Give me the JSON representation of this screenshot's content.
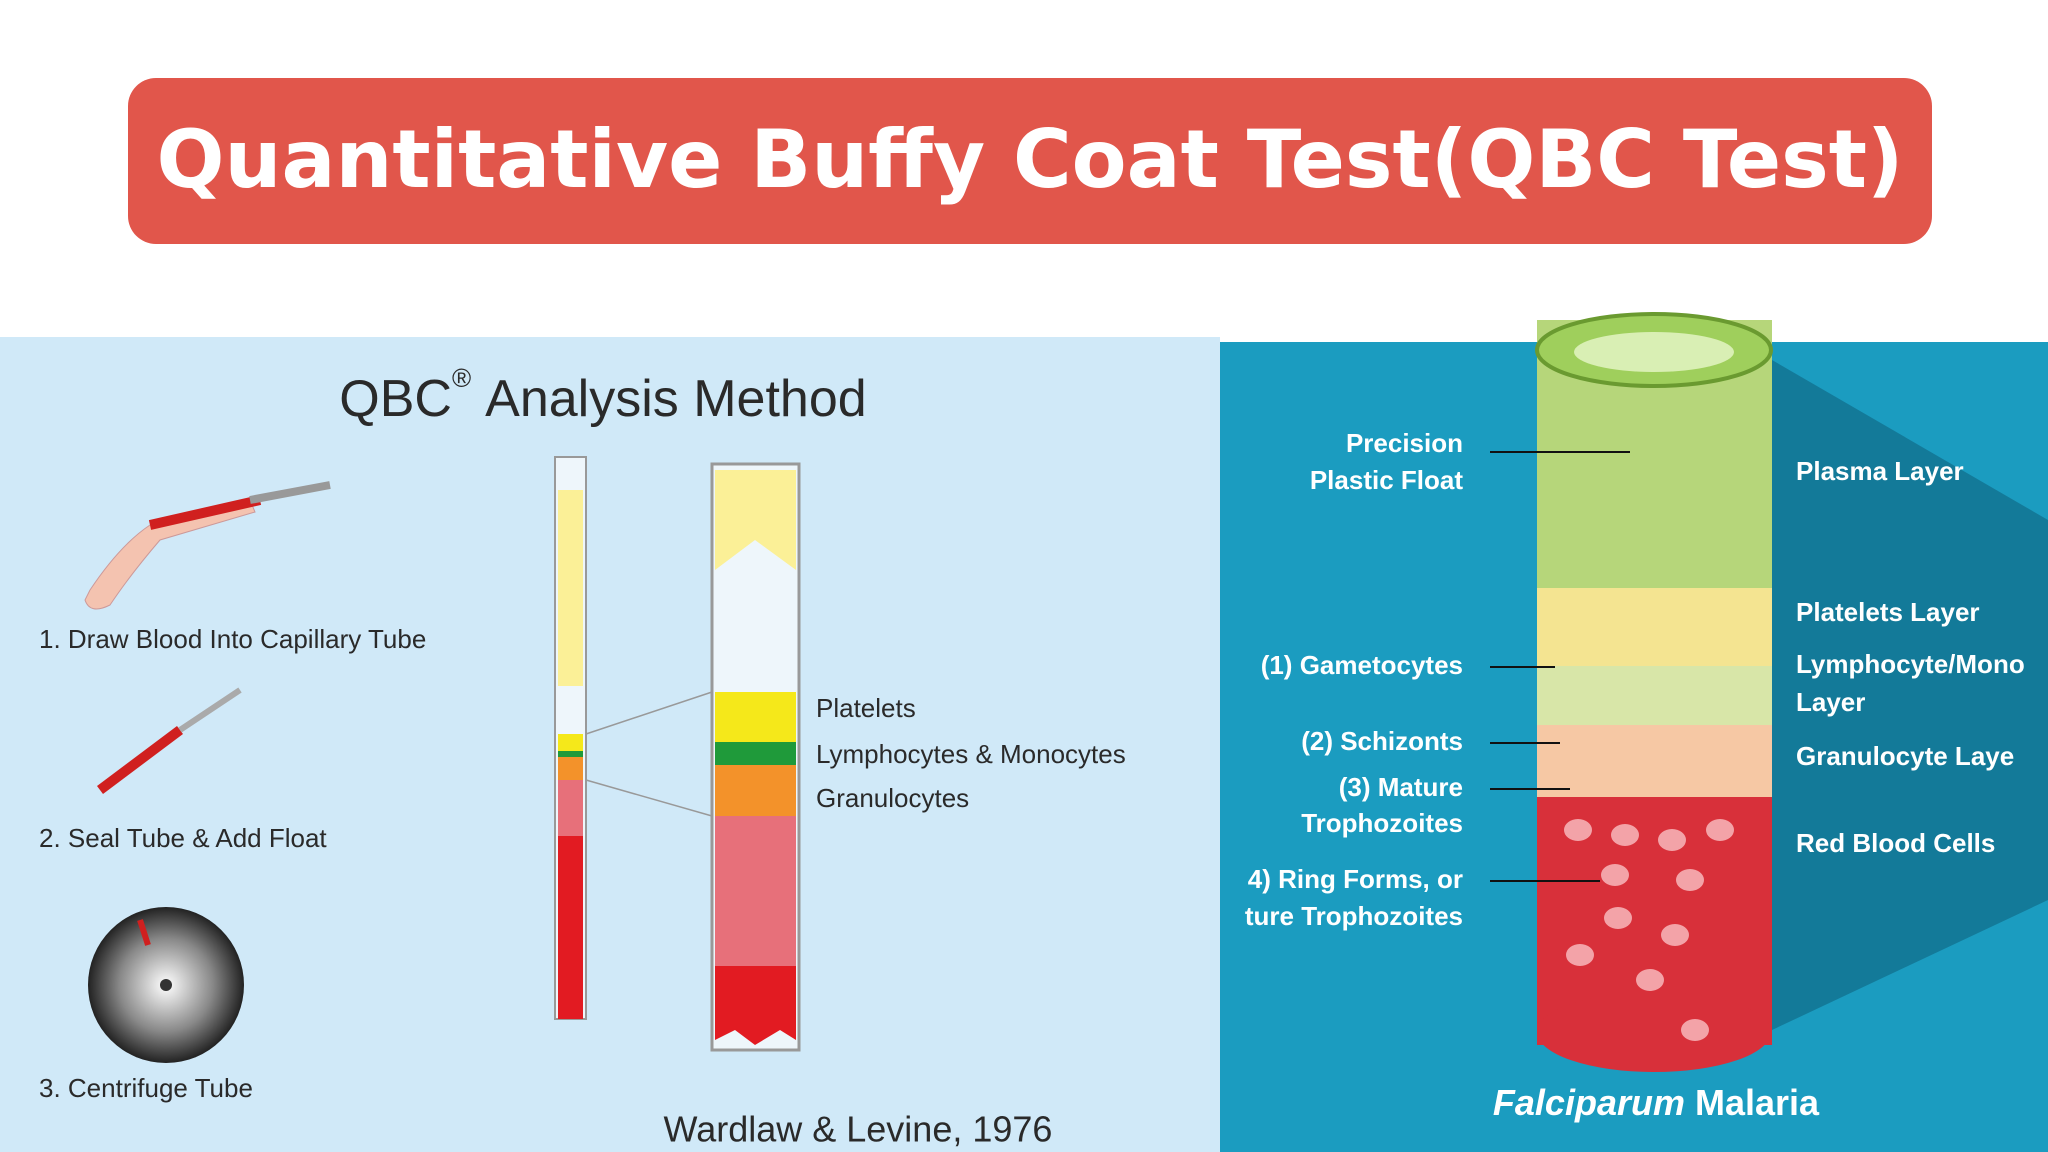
{
  "header": {
    "title": "Quantitative Buffy Coat Test(QBC Test)"
  },
  "left_panel": {
    "title": "QBC",
    "title_mark": "®",
    "title_rest": "Analysis Method",
    "steps": [
      "1. Draw Blood Into Capillary Tube",
      "2. Seal Tube & Add Float",
      "3. Centrifuge Tube"
    ],
    "layers": [
      "Platelets",
      "Lymphocytes & Monocytes",
      "Granulocytes"
    ],
    "citation": "Wardlaw & Levine, 1976"
  },
  "right_panel": {
    "left_labels": [
      "Precision",
      "Plastic Float",
      "(1) Gametocytes",
      "(2) Schizonts",
      "(3) Mature",
      "Trophozoites",
      "4) Ring Forms, or",
      "ture Trophozoites"
    ],
    "right_labels": [
      "Plasma Layer",
      "Platelets Layer",
      "Lymphocyte/Mono",
      "Layer",
      "Granulocyte Laye",
      "Red Blood Cells"
    ],
    "caption_italic": "Falciparum",
    "caption_rest": "Malaria"
  }
}
